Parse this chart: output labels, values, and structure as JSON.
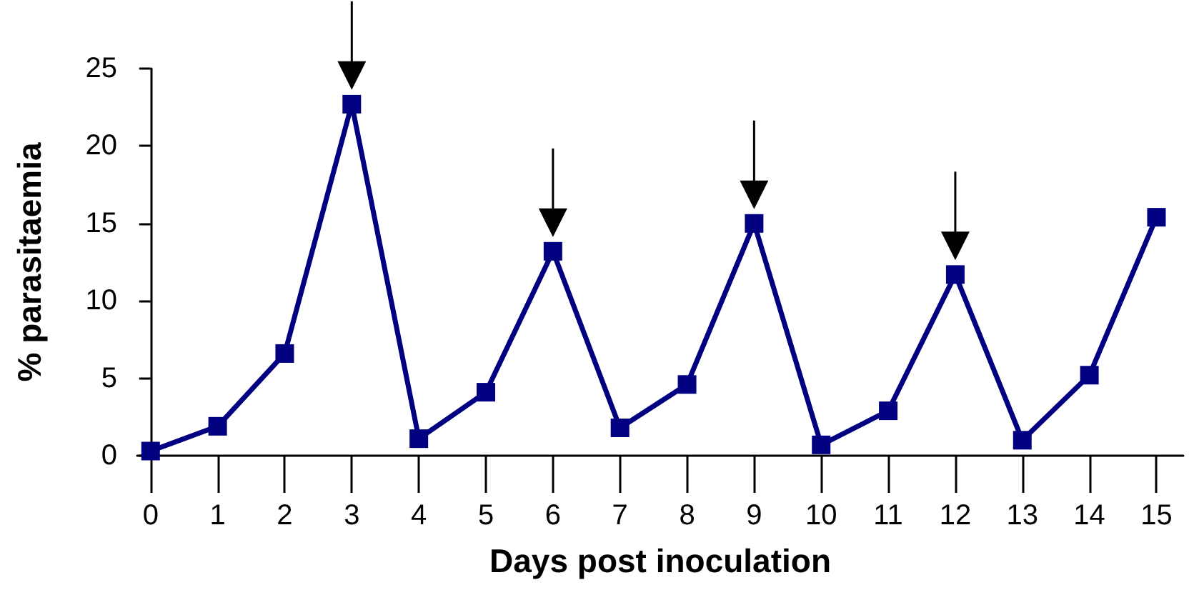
{
  "chart_data": {
    "type": "line",
    "xlabel": "Days post inoculation",
    "ylabel": "% parasitaemia",
    "x": [
      0,
      1,
      2,
      3,
      4,
      5,
      6,
      7,
      8,
      9,
      10,
      11,
      12,
      13,
      14,
      15
    ],
    "series": [
      {
        "color": "#000080",
        "values": [
          0.3,
          1.9,
          6.6,
          22.7,
          1.1,
          4.1,
          13.2,
          1.8,
          4.6,
          15.0,
          0.7,
          2.9,
          11.7,
          1.0,
          5.2,
          15.4
        ]
      }
    ],
    "xlim": [
      -0.2,
      15.4
    ],
    "xticks": [
      0,
      1,
      2,
      3,
      4,
      5,
      6,
      7,
      8,
      9,
      10,
      11,
      12,
      13,
      14,
      15
    ],
    "ylim": [
      0,
      25
    ],
    "yticks": [
      0,
      5,
      10,
      15,
      20,
      25
    ],
    "grid": false,
    "marker": "square",
    "line_style": "solid"
  }
}
